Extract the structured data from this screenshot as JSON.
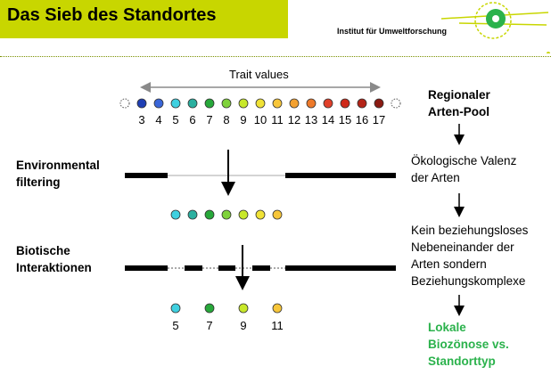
{
  "header": {
    "title": "Das Sieb des Standortes",
    "institute": "Institut für Umweltforschung",
    "colors": {
      "title_bar": "#c8d600",
      "logo_green": "#2bb24c",
      "logo_line": "#c8d600"
    }
  },
  "pool": {
    "axis_label": "Trait values",
    "numbers": [
      "3",
      "4",
      "5",
      "6",
      "7",
      "8",
      "9",
      "10",
      "11",
      "12",
      "13",
      "14",
      "15",
      "16",
      "17"
    ],
    "dot_colors": [
      "#1f3fb4",
      "#3a66d8",
      "#3fd0e0",
      "#2bb0a0",
      "#27a83a",
      "#7fd23a",
      "#c8e82a",
      "#f0e236",
      "#f7c63a",
      "#f3a130",
      "#ee7a2a",
      "#e0402a",
      "#cf2a1a",
      "#b42418",
      "#8a1a12"
    ]
  },
  "filter_stage": {
    "label_line1": "Environmental",
    "label_line2": "filtering",
    "dot_colors": [
      "#3fd0e0",
      "#2bb0a0",
      "#27a83a",
      "#7fd23a",
      "#c8e82a",
      "#f0e236",
      "#f7c63a"
    ]
  },
  "interaction_stage": {
    "label_line1": "Biotische",
    "label_line2": "Interaktionen"
  },
  "result": {
    "numbers": [
      "5",
      "7",
      "9",
      "11"
    ],
    "dot_colors": [
      "#3fd0e0",
      "#27a83a",
      "#c8e82a",
      "#f7c63a"
    ]
  },
  "right_column": {
    "pool_title_line1": "Regionaler",
    "pool_title_line2": "Arten-Pool",
    "valence_line1": "Ökologische Valenz",
    "valence_line2": "der Arten",
    "complex_line1": "Kein beziehungsloses",
    "complex_line2": "Nebeneinander der",
    "complex_line3": "Arten sondern",
    "complex_line4": "Beziehungskomplexe",
    "result_line1": "Lokale",
    "result_line2": "Biozönose vs.",
    "result_line3": "Standorttyp"
  }
}
